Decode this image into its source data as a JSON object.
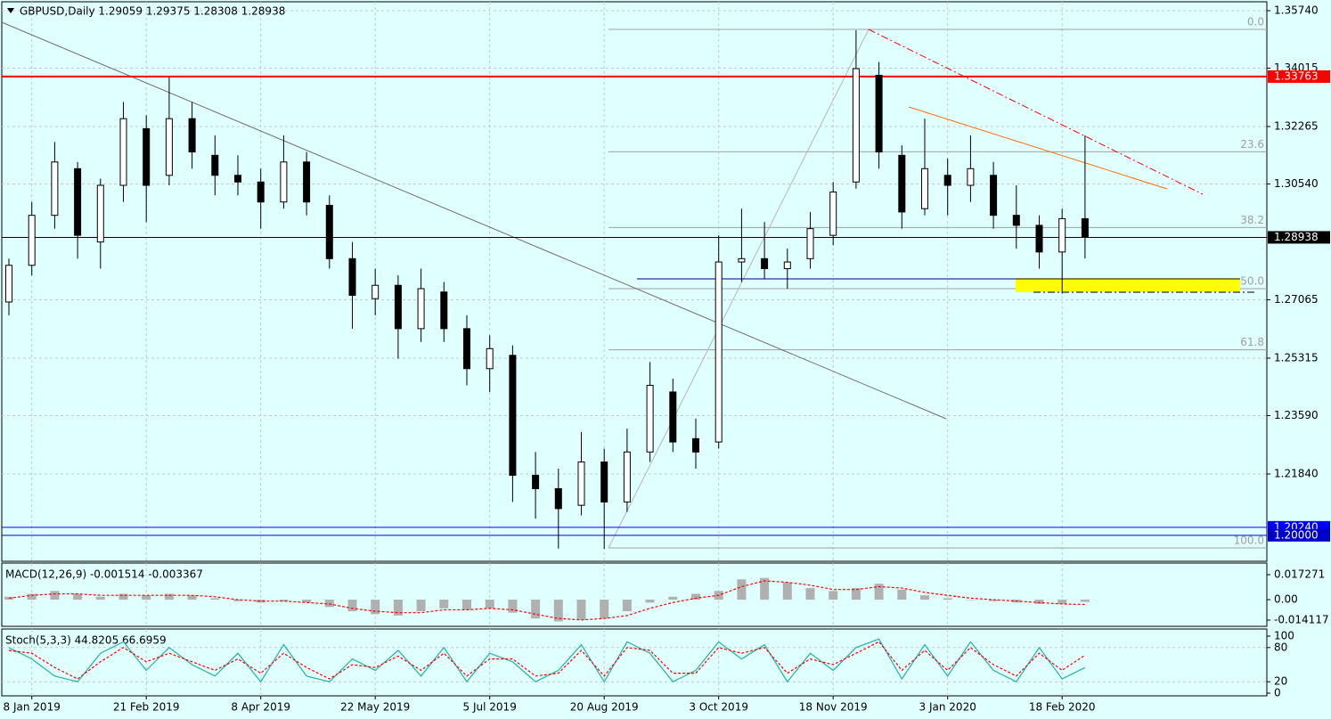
{
  "chart_data": [
    {
      "type": "candlestick",
      "title": "GBPUSD,Daily  1.29059 1.29375 1.28308 1.28938",
      "categories": [
        null,
        "8 Jan 2019",
        null,
        null,
        null,
        null,
        "21 Feb 2019",
        null,
        null,
        null,
        null,
        "8 Apr 2019",
        null,
        null,
        null,
        null,
        "22 May 2019",
        null,
        null,
        null,
        null,
        "5 Jul 2019",
        null,
        null,
        null,
        null,
        "20 Aug 2019",
        null,
        null,
        null,
        null,
        "3 Oct 2019",
        null,
        null,
        null,
        null,
        "18 Nov 2019",
        null,
        null,
        null,
        null,
        "3 Jan 2020",
        null,
        null,
        null,
        null,
        "18 Feb 2020",
        null
      ],
      "open": [
        1.27,
        1.281,
        1.296,
        1.31,
        1.288,
        1.305,
        1.322,
        1.308,
        1.325,
        1.314,
        1.308,
        1.306,
        1.3,
        1.312,
        1.299,
        1.283,
        1.271,
        1.275,
        1.262,
        1.273,
        1.262,
        1.25,
        1.254,
        1.218,
        1.214,
        1.209,
        1.222,
        1.21,
        1.225,
        1.243,
        1.229,
        1.228,
        1.282,
        1.283,
        1.28,
        1.283,
        1.29,
        1.306,
        1.338,
        1.314,
        1.298,
        1.308,
        1.305,
        1.308,
        1.296,
        1.293,
        1.285,
        1.295
      ],
      "high": [
        1.283,
        1.3,
        1.318,
        1.312,
        1.307,
        1.33,
        1.326,
        1.3375,
        1.33,
        1.32,
        1.314,
        1.31,
        1.32,
        1.315,
        1.302,
        1.288,
        1.28,
        1.278,
        1.28,
        1.276,
        1.266,
        1.26,
        1.257,
        1.225,
        1.22,
        1.231,
        1.226,
        1.232,
        1.252,
        1.247,
        1.235,
        1.29,
        1.298,
        1.294,
        1.286,
        1.297,
        1.306,
        1.3515,
        1.342,
        1.317,
        1.325,
        1.313,
        1.32,
        1.312,
        1.305,
        1.296,
        1.298,
        1.32
      ],
      "low": [
        1.266,
        1.278,
        1.292,
        1.283,
        1.28,
        1.3,
        1.294,
        1.305,
        1.31,
        1.302,
        1.302,
        1.292,
        1.298,
        1.296,
        1.28,
        1.262,
        1.266,
        1.253,
        1.258,
        1.258,
        1.245,
        1.243,
        1.21,
        1.205,
        1.196,
        1.206,
        1.1959,
        1.207,
        1.222,
        1.225,
        1.22,
        1.226,
        1.276,
        1.277,
        1.274,
        1.28,
        1.287,
        1.304,
        1.31,
        1.292,
        1.296,
        1.296,
        1.3,
        1.292,
        1.286,
        1.28,
        1.2725,
        1.28308
      ],
      "close": [
        1.281,
        1.296,
        1.312,
        1.29,
        1.305,
        1.325,
        1.305,
        1.325,
        1.315,
        1.308,
        1.306,
        1.3,
        1.312,
        1.3,
        1.283,
        1.272,
        1.275,
        1.262,
        1.274,
        1.262,
        1.25,
        1.256,
        1.218,
        1.214,
        1.208,
        1.222,
        1.21,
        1.225,
        1.245,
        1.228,
        1.225,
        1.282,
        1.283,
        1.28,
        1.282,
        1.292,
        1.303,
        1.34,
        1.315,
        1.297,
        1.31,
        1.305,
        1.31,
        1.296,
        1.293,
        1.285,
        1.295,
        1.28938
      ],
      "ylim": [
        1.1922,
        1.3606
      ],
      "yticks": [
        {
          "value": 1.3574,
          "label": "1.35740"
        },
        1.34015,
        1.32265,
        {
          "value": 1.3054,
          "label": "1.30540"
        },
        1.27065,
        1.25315,
        {
          "value": 1.2359,
          "label": "1.23590"
        },
        {
          "value": 1.2184,
          "label": "1.21840"
        }
      ],
      "price_lines": [
        {
          "value": 1.33763,
          "color": "#ff0000"
        },
        {
          "value": 1.28938,
          "color": "#000000"
        },
        {
          "value": 1.2024,
          "label": "1.20240",
          "color": "#0000ff"
        },
        {
          "value": 1.2,
          "label": "1.20000",
          "color": "#0000cc"
        }
      ],
      "fibo_levels": [
        {
          "value": 0,
          "label": "0.0"
        },
        23.6,
        38.2,
        {
          "value": 50,
          "label": "50.0"
        },
        61.8,
        {
          "value": 100,
          "label": "100.0"
        }
      ],
      "grid": true
    },
    {
      "type": "macd",
      "title": "MACD(12,26,9) -0.001514 -0.003367",
      "series": [
        {
          "style": "histogram",
          "color": "#b0b0b0",
          "values": [
            0.002,
            0.004,
            0.006,
            0.004,
            0.002,
            0.004,
            0.003,
            0.004,
            0.003,
            0.001,
            -0.001,
            -0.002,
            -0.001,
            -0.002,
            -0.005,
            -0.008,
            -0.01,
            -0.011,
            -0.008,
            -0.006,
            -0.007,
            -0.006,
            -0.009,
            -0.013,
            -0.015,
            -0.014,
            -0.013,
            -0.008,
            -0.002,
            0.002,
            0.004,
            0.006,
            0.014,
            0.015,
            0.012,
            0.008,
            0.006,
            0.008,
            0.011,
            0.007,
            0.003,
            0.001,
            0.0,
            -0.001,
            -0.002,
            -0.003,
            -0.003,
            -0.001514
          ]
        },
        {
          "style": "dotted",
          "color": "#ff0000",
          "values": [
            0.001,
            0.003,
            0.004,
            0.004,
            0.003,
            0.003,
            0.003,
            0.003,
            0.003,
            0.002,
            0.0,
            -0.001,
            -0.001,
            -0.002,
            -0.003,
            -0.006,
            -0.008,
            -0.009,
            -0.009,
            -0.007,
            -0.007,
            -0.006,
            -0.007,
            -0.01,
            -0.013,
            -0.014,
            -0.013,
            -0.011,
            -0.006,
            -0.002,
            0.001,
            0.003,
            0.009,
            0.013,
            0.012,
            0.01,
            0.007,
            0.007,
            0.009,
            0.008,
            0.005,
            0.003,
            0.001,
            0.0,
            -0.001,
            -0.002,
            -0.003,
            -0.003367
          ]
        }
      ],
      "ylim": [
        -0.01843,
        0.02527
      ],
      "yticks": [
        0.017271,
        {
          "value": 0,
          "label": "0.00"
        },
        -0.014117
      ]
    },
    {
      "type": "stoch",
      "title": "Stoch(5,3,3) 44.8205 66.6959",
      "series": [
        {
          "style": "solid",
          "color": "#20b2aa",
          "values": [
            80,
            60,
            30,
            20,
            70,
            90,
            40,
            80,
            50,
            30,
            70,
            20,
            85,
            30,
            20,
            60,
            40,
            75,
            30,
            80,
            20,
            70,
            55,
            20,
            40,
            85,
            20,
            90,
            70,
            20,
            40,
            90,
            60,
            85,
            20,
            70,
            40,
            80,
            95,
            25,
            85,
            30,
            90,
            40,
            20,
            80,
            25,
            44.8205
          ]
        },
        {
          "style": "dotted",
          "color": "#ff0000",
          "values": [
            75,
            70,
            45,
            25,
            55,
            80,
            55,
            70,
            55,
            40,
            60,
            35,
            70,
            45,
            25,
            50,
            45,
            65,
            40,
            70,
            30,
            60,
            60,
            30,
            35,
            75,
            30,
            80,
            75,
            35,
            35,
            80,
            70,
            80,
            35,
            60,
            50,
            70,
            90,
            40,
            75,
            40,
            80,
            50,
            30,
            70,
            40,
            66.6959
          ]
        }
      ],
      "ylim": [
        0,
        100
      ],
      "yticks": [
        100,
        80,
        20,
        0
      ]
    }
  ]
}
